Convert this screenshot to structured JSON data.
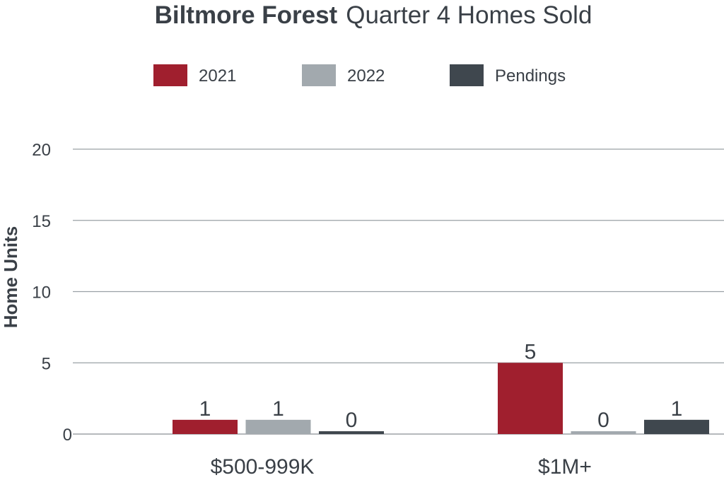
{
  "chart_data": {
    "type": "bar",
    "title_bold": "Biltmore Forest",
    "title_rest": "Quarter 4 Homes Sold",
    "xlabel": "",
    "ylabel": "Home Units",
    "ylim": [
      0,
      20
    ],
    "yticks": [
      0,
      5,
      10,
      15,
      20
    ],
    "grid": true,
    "legend_position": "top",
    "categories": [
      "$500-999K",
      "$1M+"
    ],
    "series": [
      {
        "name": "2021",
        "color": "#a01f2e",
        "values": [
          1,
          5
        ]
      },
      {
        "name": "2022",
        "color": "#a2a9ae",
        "values": [
          1,
          0
        ]
      },
      {
        "name": "Pendings",
        "color": "#3f474e",
        "values": [
          0,
          1
        ]
      }
    ]
  }
}
